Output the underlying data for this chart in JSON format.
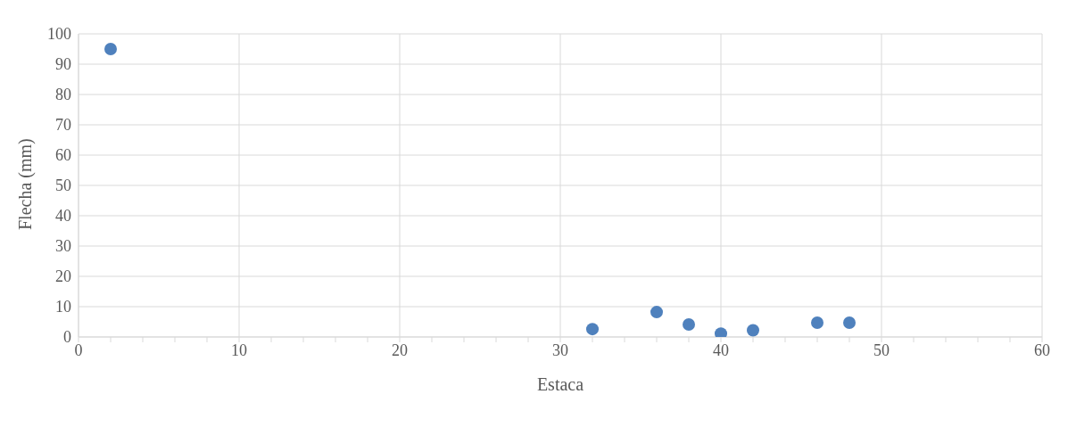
{
  "chart_data": {
    "type": "scatter",
    "xlabel": "Estaca",
    "ylabel": "Flecha (mm)",
    "x": [
      2,
      32,
      36,
      38,
      40,
      42,
      46,
      48
    ],
    "values": [
      95,
      2.6,
      8.2,
      4.1,
      1.1,
      2.2,
      4.7,
      4.7
    ],
    "color": "#4f81bd",
    "marker": "circle",
    "xlim": [
      0,
      60
    ],
    "xticks": [
      0,
      {
        "value": 2,
        "label": null
      },
      {
        "value": 4,
        "label": null
      },
      {
        "value": 6,
        "label": null
      },
      {
        "value": 8,
        "label": null
      },
      10,
      {
        "value": 12,
        "label": null
      },
      {
        "value": 14,
        "label": null
      },
      {
        "value": 16,
        "label": null
      },
      {
        "value": 18,
        "label": null
      },
      20,
      {
        "value": 22,
        "label": null
      },
      {
        "value": 24,
        "label": null
      },
      {
        "value": 26,
        "label": null
      },
      {
        "value": 28,
        "label": null
      },
      30,
      {
        "value": 32,
        "label": null
      },
      {
        "value": 34,
        "label": null
      },
      {
        "value": 36,
        "label": null
      },
      {
        "value": 38,
        "label": null
      },
      40,
      {
        "value": 42,
        "label": null
      },
      {
        "value": 44,
        "label": null
      },
      {
        "value": 46,
        "label": null
      },
      {
        "value": 48,
        "label": null
      },
      50,
      {
        "value": 52,
        "label": null
      },
      {
        "value": 54,
        "label": null
      },
      {
        "value": 56,
        "label": null
      },
      {
        "value": 58,
        "label": null
      },
      60
    ],
    "ylim": [
      0,
      100
    ],
    "yticks": [
      0,
      10,
      20,
      30,
      40,
      50,
      60,
      70,
      80,
      90,
      100
    ],
    "grid": true,
    "legend": false
  }
}
